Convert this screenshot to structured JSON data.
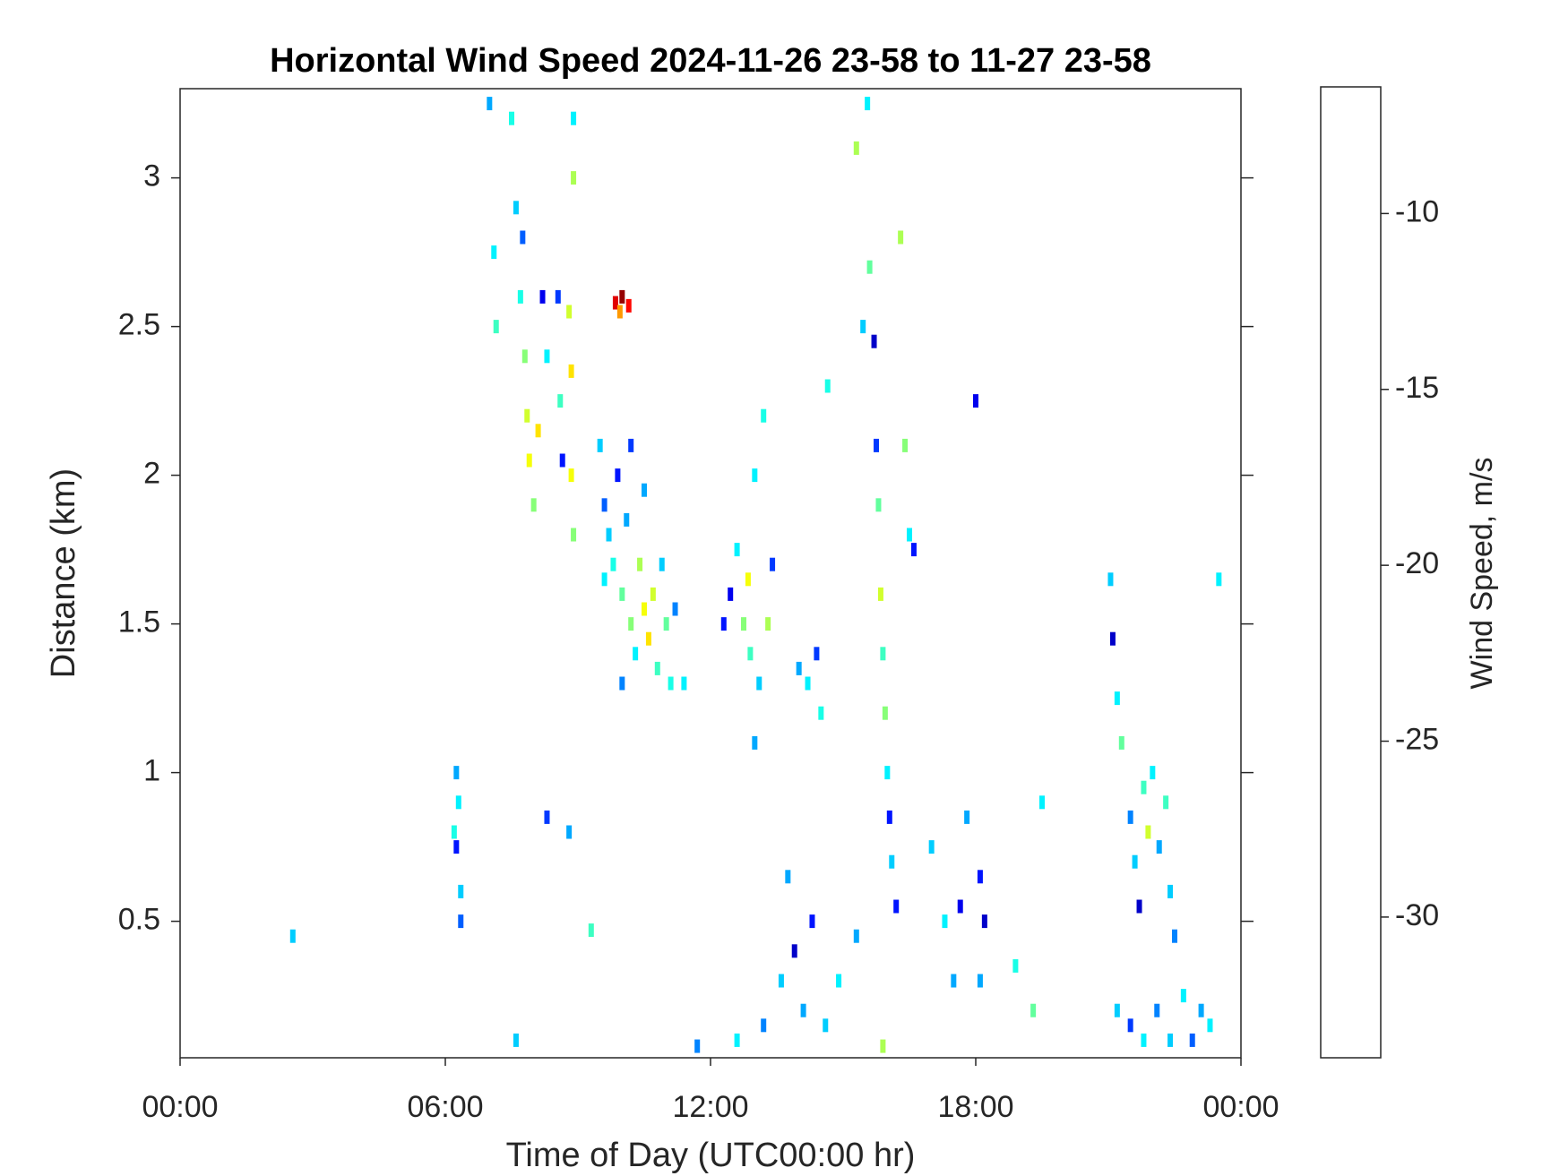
{
  "chart_data": {
    "type": "heatmap",
    "title": "Horizontal Wind Speed 2024-11-26 23-58 to 11-27 23-58",
    "x_label": "Time of Day (UTC00:00 hr)",
    "y_label": "Distance (km)",
    "xlim": [
      0,
      24
    ],
    "xticks": [
      {
        "value": 0,
        "label": "00:00"
      },
      {
        "value": 6,
        "label": "06:00"
      },
      {
        "value": 12,
        "label": "12:00"
      },
      {
        "value": 18,
        "label": "18:00"
      },
      {
        "value": 24,
        "label": "00:00"
      }
    ],
    "ylim": [
      0.041,
      3.3
    ],
    "yticks": [
      0.5,
      1,
      1.5,
      2,
      2.5,
      3
    ],
    "colorbar": {
      "label": "Wind Speed, m/s",
      "colormap": "jet",
      "clim": [
        -34,
        -6.4
      ],
      "ticks": [
        -30,
        -25,
        -20,
        -15,
        -10
      ]
    },
    "x": [
      2.55,
      6.25,
      6.3,
      6.25,
      6.35,
      6.35,
      6.2,
      7.0,
      7.1,
      7.15,
      7.5,
      7.6,
      7.7,
      7.75,
      7.8,
      7.85,
      7.9,
      8.0,
      8.1,
      8.2,
      8.3,
      8.55,
      8.6,
      8.65,
      8.8,
      8.85,
      8.85,
      8.9,
      8.9,
      8.9,
      9.85,
      10.0,
      10.15,
      9.95,
      9.5,
      9.6,
      9.7,
      9.8,
      9.9,
      10.0,
      10.1,
      10.2,
      10.3,
      10.4,
      10.5,
      10.6,
      10.7,
      10.8,
      10.9,
      11.0,
      11.1,
      11.2,
      10.2,
      10.5,
      9.6,
      10.0,
      11.4,
      12.3,
      12.45,
      12.6,
      12.75,
      12.85,
      12.9,
      13.0,
      13.1,
      13.2,
      13.3,
      13.4,
      13.0,
      14.0,
      14.2,
      14.4,
      14.5,
      14.65,
      15.3,
      15.45,
      15.55,
      15.6,
      15.7,
      15.75,
      15.8,
      15.85,
      15.9,
      15.95,
      16.0,
      16.05,
      16.1,
      16.2,
      16.3,
      16.4,
      16.5,
      16.6,
      17.0,
      17.3,
      17.5,
      17.65,
      17.8,
      18.0,
      18.1,
      18.2,
      18.1,
      18.9,
      19.3,
      21.05,
      21.1,
      21.2,
      21.3,
      21.5,
      21.6,
      21.7,
      21.8,
      21.9,
      22.0,
      22.15,
      22.3,
      22.4,
      22.5,
      23.5,
      21.2,
      21.5,
      21.8,
      22.1,
      22.4,
      22.7,
      22.9,
      23.1,
      23.3,
      12.6,
      13.2,
      13.6,
      13.9,
      14.1,
      14.3,
      14.6,
      14.9,
      15.3,
      15.9,
      7.6,
      8.3,
      8.8,
      9.3,
      13.75,
      11.7,
      19.5
    ],
    "y": [
      0.45,
      1.0,
      0.9,
      0.75,
      0.6,
      0.5,
      0.8,
      3.25,
      2.75,
      2.5,
      3.2,
      2.9,
      2.6,
      2.8,
      2.4,
      2.2,
      2.05,
      1.9,
      2.15,
      2.6,
      2.4,
      2.6,
      2.25,
      2.05,
      2.55,
      2.35,
      2.0,
      1.8,
      3.0,
      3.2,
      2.58,
      2.6,
      2.57,
      2.55,
      2.1,
      1.9,
      1.8,
      1.7,
      2.0,
      1.6,
      1.85,
      1.5,
      1.4,
      1.7,
      1.55,
      1.45,
      1.6,
      1.35,
      1.7,
      1.5,
      1.3,
      1.55,
      2.1,
      1.95,
      1.65,
      1.3,
      1.3,
      1.5,
      1.6,
      1.75,
      1.5,
      1.65,
      1.4,
      2.0,
      1.3,
      2.2,
      1.5,
      1.7,
      1.1,
      1.35,
      1.3,
      1.4,
      1.2,
      2.3,
      3.1,
      2.5,
      3.25,
      2.7,
      2.45,
      2.1,
      1.9,
      1.6,
      1.4,
      1.2,
      1.0,
      0.85,
      0.7,
      0.55,
      2.8,
      2.1,
      1.8,
      1.75,
      0.75,
      0.5,
      0.3,
      0.55,
      0.85,
      2.25,
      0.65,
      0.5,
      0.3,
      0.35,
      0.2,
      1.65,
      1.45,
      1.25,
      1.1,
      0.85,
      0.7,
      0.55,
      0.95,
      0.8,
      1.0,
      0.75,
      0.9,
      0.6,
      0.45,
      1.65,
      0.2,
      0.15,
      0.1,
      0.2,
      0.1,
      0.25,
      0.1,
      0.2,
      0.15,
      0.1,
      0.15,
      0.3,
      0.4,
      0.2,
      0.5,
      0.15,
      0.3,
      0.45,
      0.08,
      0.1,
      0.85,
      0.8,
      0.47,
      0.65,
      0.08,
      0.9
    ],
    "values": [
      -25,
      -26,
      -24,
      -30,
      -25,
      -28,
      -23,
      -26,
      -24,
      -22,
      -23,
      -25,
      -23,
      -28,
      -20,
      -18,
      -17,
      -20,
      -16,
      -31,
      -24,
      -29,
      -22,
      -30,
      -18,
      -16,
      -17,
      -20,
      -19,
      -24,
      -9,
      -7,
      -10,
      -14,
      -25,
      -28,
      -25,
      -23,
      -30,
      -21,
      -26,
      -20,
      -24,
      -19,
      -17,
      -16,
      -18,
      -22,
      -25,
      -21,
      -23,
      -27,
      -29,
      -26,
      -24,
      -27,
      -24,
      -30,
      -31,
      -24,
      -20,
      -17,
      -22,
      -24,
      -25,
      -23,
      -19,
      -29,
      -26,
      -26,
      -24,
      -29,
      -23,
      -23,
      -19,
      -25,
      -24,
      -21,
      -32,
      -29,
      -21,
      -18,
      -22,
      -20,
      -24,
      -30,
      -25,
      -30,
      -19,
      -20,
      -24,
      -30,
      -25,
      -24,
      -26,
      -31,
      -26,
      -31,
      -30,
      -32,
      -26,
      -23,
      -21,
      -25,
      -32,
      -24,
      -21,
      -27,
      -25,
      -32,
      -22,
      -18,
      -24,
      -26,
      -22,
      -25,
      -27,
      -24,
      -25,
      -29,
      -24,
      -27,
      -25,
      -24,
      -28,
      -26,
      -24,
      -24,
      -27,
      -25,
      -32,
      -26,
      -30,
      -25,
      -24,
      -26,
      -19,
      -25,
      -29,
      -26,
      -22,
      -26,
      -27,
      -24
    ]
  }
}
